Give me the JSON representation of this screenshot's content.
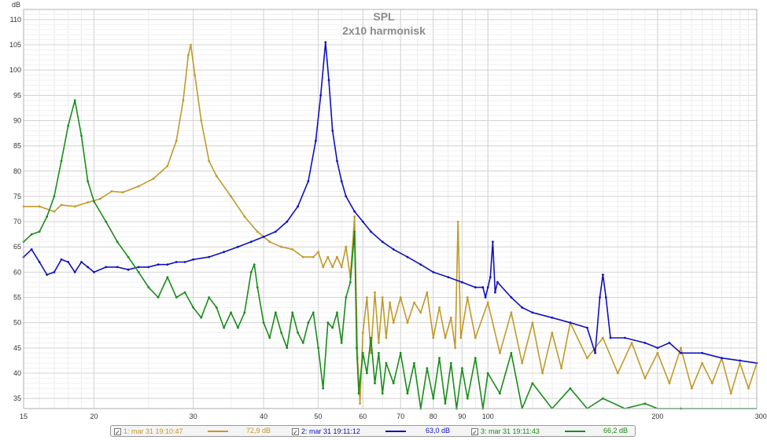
{
  "chart_data": {
    "type": "line",
    "title": "SPL",
    "subtitle": "2x10 harmonisk",
    "ylabel": "dB",
    "xunit": "Hz",
    "xscale": "log",
    "xlim": [
      15,
      300
    ],
    "ylim": [
      33,
      112
    ],
    "grid": true,
    "x_ticks": [
      15,
      20,
      30,
      40,
      50,
      60,
      70,
      80,
      90,
      100,
      200,
      300
    ],
    "x_tick_labels": [
      "15",
      "20",
      "30",
      "40",
      "50",
      "60",
      "70",
      "80",
      "90",
      "100",
      "200",
      "300 Hz"
    ],
    "y_ticks": [
      35,
      40,
      45,
      50,
      55,
      60,
      65,
      70,
      75,
      80,
      85,
      90,
      95,
      100,
      105,
      110
    ],
    "y_tick_labels": [
      "35",
      "40",
      "45",
      "50",
      "55",
      "60",
      "65",
      "70",
      "75",
      "80",
      "85",
      "90",
      "95",
      "100",
      "105",
      "110"
    ],
    "series": [
      {
        "legend_label": "1: mar 31 19:10:47",
        "legend_value": "72,9 dB",
        "color": "#c09a28",
        "points": [
          [
            15,
            73
          ],
          [
            16,
            73
          ],
          [
            17,
            72
          ],
          [
            17.5,
            73.3
          ],
          [
            18.5,
            73
          ],
          [
            19.5,
            73.8
          ],
          [
            20.5,
            74.5
          ],
          [
            21.5,
            76
          ],
          [
            22.5,
            75.8
          ],
          [
            24,
            77
          ],
          [
            25.5,
            78.5
          ],
          [
            27,
            81
          ],
          [
            28,
            86
          ],
          [
            28.8,
            94
          ],
          [
            29.4,
            103
          ],
          [
            29.7,
            105
          ],
          [
            30.2,
            99
          ],
          [
            31,
            90
          ],
          [
            32,
            82
          ],
          [
            33,
            79
          ],
          [
            35,
            75
          ],
          [
            37,
            71
          ],
          [
            39,
            68
          ],
          [
            41,
            66
          ],
          [
            43,
            65
          ],
          [
            45,
            64.5
          ],
          [
            47,
            63
          ],
          [
            49,
            63
          ],
          [
            50,
            64
          ],
          [
            51,
            61
          ],
          [
            52,
            63
          ],
          [
            53,
            61
          ],
          [
            54,
            63
          ],
          [
            55,
            61
          ],
          [
            56,
            65
          ],
          [
            57,
            59
          ],
          [
            58,
            71
          ],
          [
            58.7,
            43
          ],
          [
            59.3,
            34
          ],
          [
            60,
            48
          ],
          [
            61,
            55
          ],
          [
            62,
            44
          ],
          [
            63,
            56
          ],
          [
            64,
            46
          ],
          [
            65,
            55
          ],
          [
            66,
            47
          ],
          [
            67,
            54
          ],
          [
            68,
            50
          ],
          [
            70,
            55
          ],
          [
            72,
            50
          ],
          [
            74,
            54
          ],
          [
            76,
            52
          ],
          [
            78,
            56
          ],
          [
            80,
            47
          ],
          [
            82,
            53
          ],
          [
            84,
            47
          ],
          [
            86,
            51
          ],
          [
            87.5,
            45
          ],
          [
            88.5,
            70
          ],
          [
            89.5,
            47
          ],
          [
            92,
            55
          ],
          [
            95,
            47
          ],
          [
            100,
            54
          ],
          [
            105,
            44
          ],
          [
            110,
            52
          ],
          [
            115,
            42
          ],
          [
            120,
            50
          ],
          [
            125,
            40
          ],
          [
            130,
            48
          ],
          [
            135,
            41
          ],
          [
            140,
            50
          ],
          [
            150,
            43
          ],
          [
            160,
            47
          ],
          [
            170,
            40
          ],
          [
            180,
            46
          ],
          [
            190,
            39
          ],
          [
            200,
            44
          ],
          [
            210,
            38
          ],
          [
            220,
            45
          ],
          [
            230,
            37
          ],
          [
            240,
            42
          ],
          [
            250,
            38
          ],
          [
            260,
            43
          ],
          [
            270,
            36
          ],
          [
            280,
            42
          ],
          [
            290,
            37
          ],
          [
            300,
            42
          ]
        ]
      },
      {
        "legend_label": "2: mar 31 19:11:12",
        "legend_value": "63,0 dB",
        "color": "#1010c0",
        "points": [
          [
            15,
            63
          ],
          [
            15.5,
            64.5
          ],
          [
            16,
            62
          ],
          [
            16.5,
            59.5
          ],
          [
            17,
            60
          ],
          [
            17.5,
            62.5
          ],
          [
            18,
            62
          ],
          [
            18.5,
            60
          ],
          [
            19,
            62
          ],
          [
            19.5,
            61
          ],
          [
            20,
            60
          ],
          [
            21,
            61
          ],
          [
            22,
            61
          ],
          [
            23,
            60.5
          ],
          [
            24,
            61
          ],
          [
            25,
            61
          ],
          [
            26,
            61.5
          ],
          [
            27,
            61.5
          ],
          [
            28,
            62
          ],
          [
            29,
            62
          ],
          [
            30,
            62.5
          ],
          [
            32,
            63
          ],
          [
            34,
            64
          ],
          [
            36,
            65
          ],
          [
            38,
            66
          ],
          [
            40,
            67
          ],
          [
            42,
            68
          ],
          [
            44,
            70
          ],
          [
            46,
            73
          ],
          [
            48,
            78
          ],
          [
            49.5,
            86
          ],
          [
            50.5,
            95
          ],
          [
            51.5,
            105.5
          ],
          [
            52.2,
            98
          ],
          [
            53,
            88
          ],
          [
            54,
            82
          ],
          [
            55,
            78
          ],
          [
            56,
            75
          ],
          [
            58,
            72
          ],
          [
            60,
            70
          ],
          [
            62,
            68
          ],
          [
            65,
            66
          ],
          [
            68,
            64.5
          ],
          [
            72,
            63
          ],
          [
            76,
            61.5
          ],
          [
            80,
            60
          ],
          [
            85,
            59
          ],
          [
            90,
            58
          ],
          [
            95,
            57
          ],
          [
            98,
            57
          ],
          [
            99,
            55
          ],
          [
            100,
            57
          ],
          [
            101,
            59
          ],
          [
            102,
            66
          ],
          [
            103,
            56
          ],
          [
            104,
            58
          ],
          [
            110,
            55
          ],
          [
            115,
            53
          ],
          [
            120,
            52
          ],
          [
            130,
            51
          ],
          [
            140,
            50
          ],
          [
            150,
            49
          ],
          [
            155,
            44
          ],
          [
            158,
            55
          ],
          [
            160,
            59.5
          ],
          [
            162,
            55
          ],
          [
            165,
            47
          ],
          [
            175,
            47
          ],
          [
            190,
            46
          ],
          [
            200,
            45
          ],
          [
            210,
            46
          ],
          [
            220,
            44
          ],
          [
            240,
            44
          ],
          [
            260,
            43
          ],
          [
            280,
            42.5
          ],
          [
            300,
            42
          ]
        ]
      },
      {
        "legend_label": "3: mar 31 19:11:43",
        "legend_value": "66,2 dB",
        "color": "#1a8c1a",
        "points": [
          [
            15,
            66
          ],
          [
            15.5,
            67.5
          ],
          [
            16,
            68
          ],
          [
            16.5,
            71
          ],
          [
            17,
            75
          ],
          [
            17.5,
            82
          ],
          [
            18,
            89
          ],
          [
            18.5,
            94
          ],
          [
            19,
            87
          ],
          [
            19.5,
            78
          ],
          [
            20,
            74
          ],
          [
            21,
            70
          ],
          [
            22,
            66
          ],
          [
            23,
            63
          ],
          [
            24,
            60
          ],
          [
            25,
            57
          ],
          [
            26,
            55
          ],
          [
            27,
            59
          ],
          [
            28,
            55
          ],
          [
            29,
            56
          ],
          [
            30,
            53
          ],
          [
            31,
            51
          ],
          [
            32,
            55
          ],
          [
            33,
            53
          ],
          [
            34,
            49
          ],
          [
            35,
            52
          ],
          [
            36,
            49
          ],
          [
            37,
            52
          ],
          [
            38,
            60
          ],
          [
            38.5,
            61.5
          ],
          [
            39,
            57
          ],
          [
            40,
            50
          ],
          [
            41,
            47
          ],
          [
            42,
            52
          ],
          [
            43,
            48
          ],
          [
            44,
            45
          ],
          [
            45,
            52
          ],
          [
            46,
            48
          ],
          [
            47,
            46
          ],
          [
            48,
            50
          ],
          [
            49,
            52
          ],
          [
            50,
            45
          ],
          [
            51,
            37
          ],
          [
            52,
            50
          ],
          [
            53,
            49
          ],
          [
            54,
            52
          ],
          [
            55,
            46
          ],
          [
            56,
            55
          ],
          [
            57,
            58
          ],
          [
            58,
            68
          ],
          [
            58.5,
            45
          ],
          [
            59,
            36
          ],
          [
            60,
            44
          ],
          [
            61,
            40
          ],
          [
            62,
            47
          ],
          [
            63,
            38
          ],
          [
            64,
            44
          ],
          [
            65,
            36
          ],
          [
            66,
            42
          ],
          [
            68,
            38
          ],
          [
            70,
            44
          ],
          [
            72,
            36
          ],
          [
            74,
            42
          ],
          [
            76,
            33
          ],
          [
            78,
            41
          ],
          [
            80,
            35
          ],
          [
            82,
            43
          ],
          [
            84,
            34
          ],
          [
            86,
            42
          ],
          [
            88,
            33
          ],
          [
            90,
            41
          ],
          [
            92,
            35
          ],
          [
            95,
            43
          ],
          [
            98,
            33
          ],
          [
            100,
            40
          ],
          [
            105,
            36
          ],
          [
            110,
            44
          ],
          [
            115,
            32
          ],
          [
            120,
            38
          ],
          [
            130,
            31
          ],
          [
            140,
            37
          ],
          [
            150,
            30
          ],
          [
            160,
            35
          ],
          [
            175,
            29
          ],
          [
            190,
            34
          ],
          [
            200,
            29
          ],
          [
            220,
            33
          ],
          [
            240,
            28
          ],
          [
            260,
            32
          ],
          [
            280,
            28
          ],
          [
            300,
            31
          ]
        ]
      }
    ]
  }
}
